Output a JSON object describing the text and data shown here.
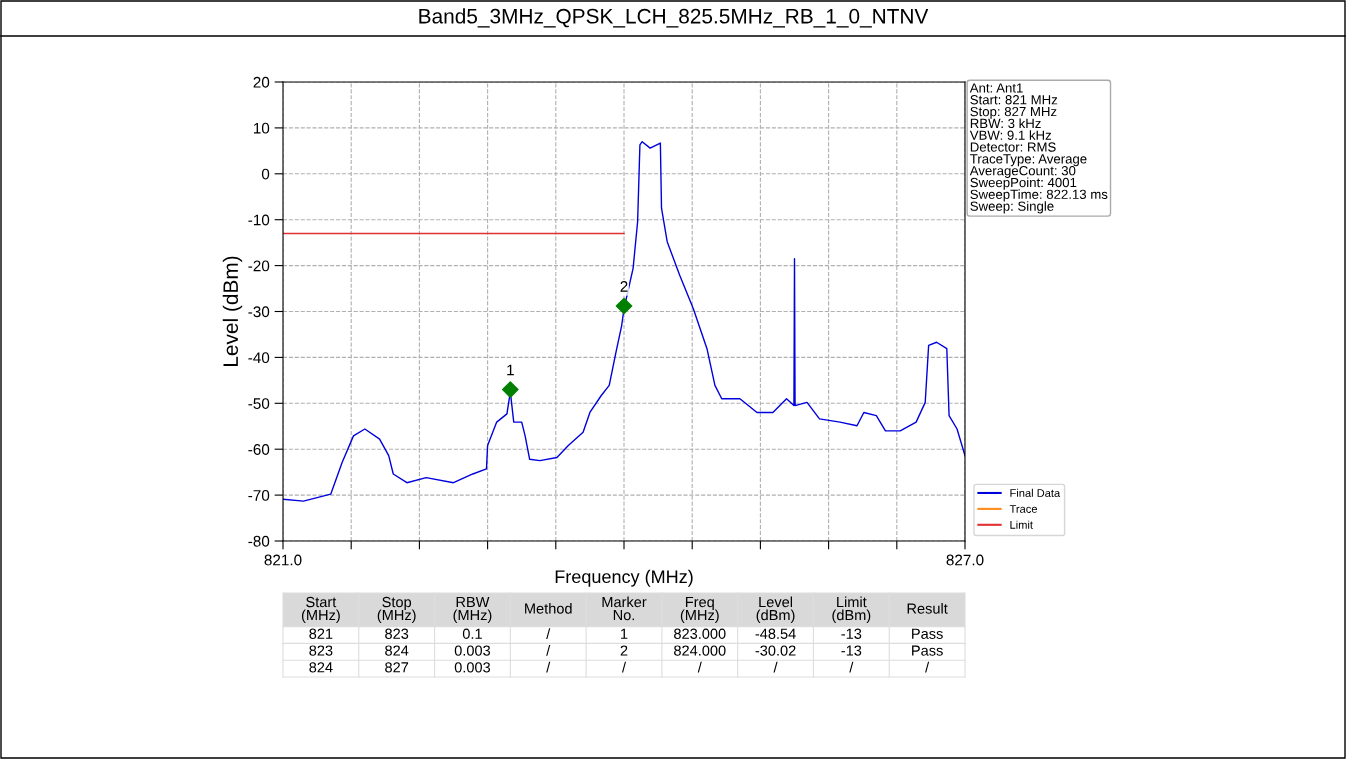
{
  "chart_data": [
    {
      "type": "line",
      "title": "Band5_3MHz_QPSK_LCH_825.5MHz_RB_1_0_NTNV",
      "xlabel": "Frequency (MHz)",
      "ylabel": "Level (dBm)",
      "xlim": [
        821,
        827
      ],
      "ylim": [
        -80,
        20
      ],
      "xticks": [
        {
          "value": 821,
          "label": "821.0"
        },
        {
          "value": 821.6,
          "label": null
        },
        {
          "value": 822.2,
          "label": null
        },
        {
          "value": 822.8,
          "label": null
        },
        {
          "value": 823.4,
          "label": null
        },
        {
          "value": 824,
          "label": null
        },
        {
          "value": 824.6,
          "label": null
        },
        {
          "value": 825.2,
          "label": null
        },
        {
          "value": 825.8,
          "label": null
        },
        {
          "value": 826.4,
          "label": null
        },
        {
          "value": 827,
          "label": "827.0"
        }
      ],
      "yticks": [
        -80,
        -70,
        -60,
        -50,
        -40,
        -30,
        -20,
        -10,
        0,
        10,
        20
      ],
      "grid": true,
      "legend": "bottom right",
      "annotations": [
        {
          "text": "1",
          "x": 823.0,
          "y": -47
        },
        {
          "text": "2",
          "x": 824.0,
          "y": -28.8
        },
        "Ant: Ant1",
        "Start: 821 MHz",
        "Stop: 827 MHz",
        "RBW: 3 kHz",
        "VBW: 9.1 kHz",
        "Detector: RMS",
        "TraceType: Average",
        "AverageCount: 30",
        "SweepPoint: 4001",
        "SweepTime: 822.13 ms",
        "Sweep: Single"
      ],
      "series": [
        {
          "name": "Final Data",
          "color": "#0000dd",
          "x": [
            821.0,
            821.18,
            821.42,
            821.52,
            821.62,
            821.72,
            821.85,
            821.93,
            821.97,
            822.09,
            822.26,
            822.5,
            822.67,
            822.79,
            822.8,
            822.88,
            822.97,
            823.0,
            823.03,
            823.1,
            823.13,
            823.17,
            823.26,
            823.41,
            823.51,
            823.64,
            823.7,
            823.8,
            823.87,
            823.93,
            823.98,
            824.0,
            824.08,
            824.12,
            824.14,
            824.16,
            824.23,
            824.32,
            824.33,
            824.38,
            824.49,
            824.61,
            824.73,
            824.8,
            824.86,
            825.02,
            825.17,
            825.31,
            825.43,
            825.495,
            825.5,
            825.505,
            825.61,
            825.72,
            825.9,
            826.05,
            826.11,
            826.22,
            826.3,
            826.43,
            826.57,
            826.65,
            826.68,
            826.75,
            826.84,
            826.86,
            826.93,
            827.0
          ],
          "values": [
            -70.9,
            -71.3,
            -69.8,
            -62.9,
            -57.1,
            -55.6,
            -57.8,
            -61.4,
            -65.4,
            -67.3,
            -66.2,
            -67.3,
            -65.4,
            -64.3,
            -59.2,
            -54.1,
            -52.3,
            -47.5,
            -54.1,
            -54.1,
            -57.1,
            -62.2,
            -62.5,
            -61.8,
            -59.2,
            -56.3,
            -52.0,
            -48.3,
            -46.1,
            -38.8,
            -33.0,
            -29.4,
            -20.6,
            -10.4,
            6.3,
            7.0,
            5.6,
            6.7,
            -7.5,
            -14.8,
            -22.1,
            -29.4,
            -38.1,
            -46.1,
            -49.0,
            -49.0,
            -52.0,
            -52.0,
            -49.0,
            -50.5,
            -18.5,
            -50.5,
            -49.8,
            -53.4,
            -54.1,
            -54.9,
            -52.0,
            -52.7,
            -56.0,
            -56.0,
            -54.1,
            -49.8,
            -37.4,
            -36.7,
            -38.1,
            -52.7,
            -55.6,
            -61.4
          ]
        },
        {
          "name": "Trace",
          "color": "#ff8c1a"
        },
        {
          "name": "Limit",
          "color": "#e03030",
          "x": [
            821,
            824
          ],
          "values": [
            -13,
            -13
          ]
        },
        {
          "type": "scatter",
          "color": "#008000",
          "marker": "diamond",
          "x": [
            823.0,
            824.0
          ],
          "values": [
            -47,
            -28.8
          ]
        }
      ]
    },
    {
      "type": "other",
      "categories": [
        "Start\n(MHz)",
        "Stop\n(MHz)",
        "RBW\n(MHz)",
        "Method",
        "Marker\nNo.",
        "Freq\n(MHz)",
        "Level\n(dBm)",
        "Limit\n(dBm)",
        "Result"
      ],
      "cell_labels": [
        [
          "821",
          "823",
          "0.1",
          "/",
          "1",
          "823.000",
          "-48.54",
          "-13",
          "Pass"
        ],
        [
          "823",
          "824",
          "0.003",
          "/",
          "2",
          "824.000",
          "-30.02",
          "-13",
          "Pass"
        ],
        [
          "824",
          "827",
          "0.003",
          "/",
          "/",
          "/",
          "/",
          "/",
          "/"
        ]
      ]
    }
  ]
}
